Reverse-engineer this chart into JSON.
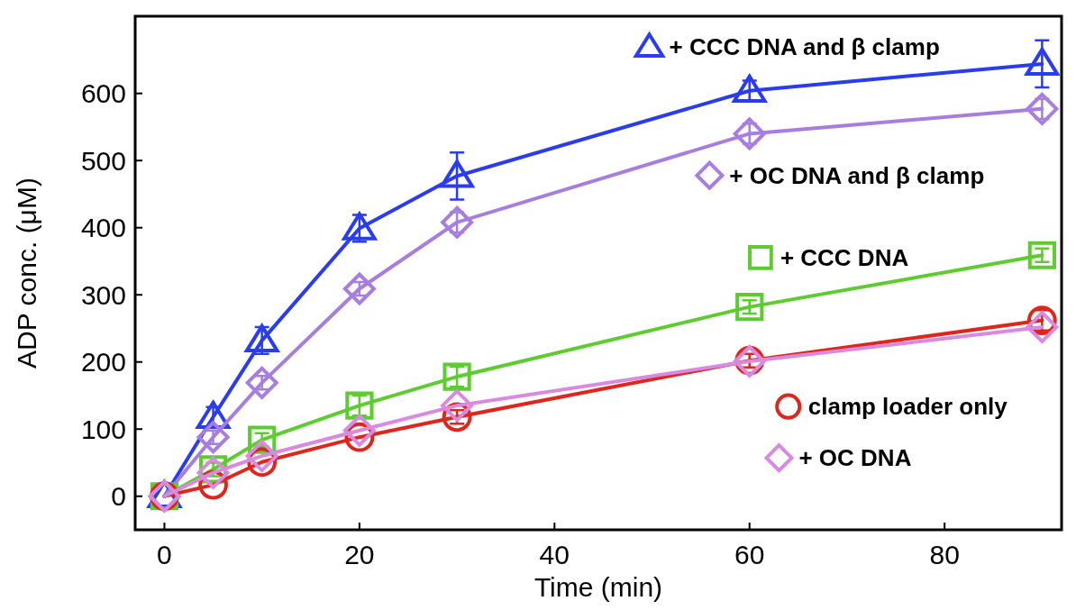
{
  "chart_data": {
    "type": "line",
    "xlabel": "Time (min)",
    "ylabel": "ADP conc. (μM)",
    "x": [
      0,
      5,
      10,
      20,
      30,
      60,
      90
    ],
    "xlim": [
      -3,
      92
    ],
    "ylim": [
      -50,
      715
    ],
    "xticks": [
      0,
      20,
      40,
      60,
      80
    ],
    "yticks": [
      0,
      100,
      200,
      300,
      400,
      500,
      600
    ],
    "grid": false,
    "legend": "right",
    "line_style": "solid",
    "series": [
      {
        "name": "+ CCC DNA and β clamp",
        "color": "#2a3cf0",
        "marker": "triangle",
        "values": [
          0,
          118,
          232,
          399,
          477,
          604,
          644
        ],
        "errors": [
          null,
          15,
          20,
          20,
          35,
          15,
          35
        ]
      },
      {
        "name": "+ OC DNA and β clamp",
        "color": "#a77de0",
        "marker": "diamond",
        "values": [
          0,
          88,
          169,
          309,
          408,
          540,
          577
        ],
        "errors": [
          null,
          10,
          10,
          10,
          15,
          15,
          15
        ]
      },
      {
        "name": "+ CCC DNA",
        "color": "#5ccc2e",
        "marker": "square",
        "values": [
          0,
          40,
          84,
          135,
          178,
          282,
          359
        ],
        "errors": [
          null,
          10,
          10,
          15,
          15,
          10,
          10
        ]
      },
      {
        "name": "clamp loader only",
        "color": "#e0251b",
        "marker": "circle",
        "values": [
          0,
          17,
          51,
          88,
          118,
          202,
          262
        ],
        "errors": [
          null,
          null,
          null,
          null,
          10,
          10,
          15
        ]
      },
      {
        "name": "+ OC DNA",
        "color": "#d98ae0",
        "marker": "diamond",
        "values": [
          0,
          35,
          60,
          98,
          135,
          201,
          252
        ],
        "errors": [
          null,
          null,
          null,
          null,
          null,
          null,
          null
        ]
      }
    ]
  }
}
